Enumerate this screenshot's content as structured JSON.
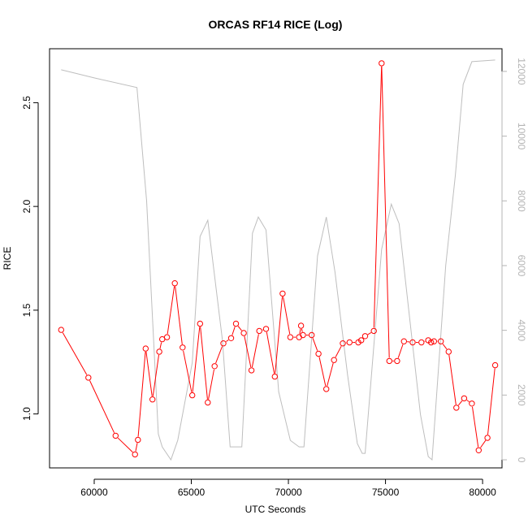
{
  "chart_data": {
    "type": "line",
    "title": "ORCAS RF14 RICE (Log)",
    "xlabel": "UTC Seconds",
    "ylabel": "RICE",
    "xlim": [
      57700,
      81000
    ],
    "ylim": [
      0.74,
      2.76
    ],
    "y2lim": [
      -250,
      12700
    ],
    "x_ticks": [
      60000,
      65000,
      70000,
      75000,
      80000
    ],
    "y_ticks": [
      1.0,
      1.5,
      2.0,
      2.5
    ],
    "y_tick_labels": [
      "1.0",
      "1.5",
      "2.0",
      "2.5"
    ],
    "y2_ticks": [
      0,
      2000,
      4000,
      6000,
      8000,
      10000,
      12000
    ],
    "colors": {
      "rice": "#ff0000",
      "altitude": "#bebebe",
      "right_axis": "#b4b4b4"
    },
    "series": [
      {
        "axis": "left",
        "style": "line+points",
        "x": [
          58300,
          59700,
          61100,
          62100,
          62250,
          62650,
          63000,
          63350,
          63500,
          63750,
          64150,
          64550,
          65050,
          65450,
          65850,
          66200,
          66650,
          67050,
          67300,
          67700,
          68100,
          68500,
          68850,
          69300,
          69700,
          70100,
          70550,
          70650,
          70750,
          71200,
          71550,
          71950,
          72350,
          72800,
          73150,
          73600,
          73750,
          73950,
          74400,
          74800,
          75200,
          75600,
          75950,
          76400,
          76850,
          77200,
          77350,
          77500,
          77850,
          78250,
          78650,
          79050,
          79450,
          79800,
          80250,
          80650
        ],
        "y": [
          1.405,
          1.175,
          0.895,
          0.805,
          0.875,
          1.315,
          1.07,
          1.3,
          1.36,
          1.37,
          1.63,
          1.32,
          1.09,
          1.435,
          1.055,
          1.23,
          1.34,
          1.365,
          1.435,
          1.39,
          1.21,
          1.4,
          1.41,
          1.18,
          1.58,
          1.37,
          1.37,
          1.425,
          1.38,
          1.38,
          1.29,
          1.12,
          1.26,
          1.34,
          1.345,
          1.345,
          1.355,
          1.375,
          1.4,
          2.69,
          1.255,
          1.255,
          1.35,
          1.345,
          1.345,
          1.355,
          1.345,
          1.35,
          1.35,
          1.3,
          1.03,
          1.075,
          1.05,
          0.825,
          0.885,
          1.235
        ]
      },
      {
        "axis": "right",
        "style": "line",
        "x": [
          58300,
          60000,
          62200,
          62700,
          63300,
          63500,
          63950,
          64300,
          65050,
          65450,
          65850,
          66600,
          67000,
          67300,
          67600,
          68150,
          68450,
          68850,
          69500,
          70100,
          70550,
          70800,
          71500,
          71950,
          72400,
          73050,
          73550,
          73800,
          73950,
          74800,
          75300,
          75700,
          76200,
          76800,
          77200,
          77400,
          78100,
          78600,
          79000,
          79450,
          80650
        ],
        "y": [
          12050,
          11800,
          11500,
          8000,
          800,
          400,
          0,
          600,
          3000,
          6900,
          7400,
          3700,
          400,
          400,
          400,
          7000,
          7500,
          7100,
          2100,
          600,
          400,
          400,
          6300,
          7500,
          5800,
          2600,
          500,
          200,
          200,
          6500,
          7900,
          7300,
          4600,
          1400,
          100,
          0,
          6000,
          8800,
          11600,
          12300,
          12350
        ]
      }
    ]
  }
}
